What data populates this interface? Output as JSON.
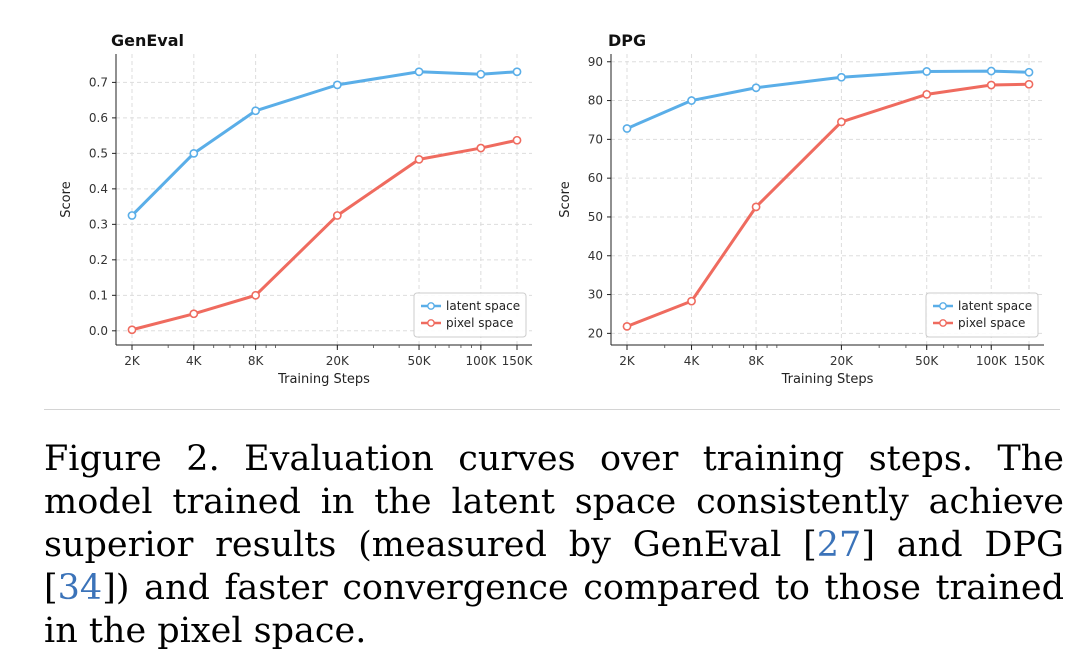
{
  "chart_data": [
    {
      "type": "line",
      "title": "GenEval",
      "xlabel": "Training Steps",
      "ylabel": "Score",
      "x_scale": "log",
      "categories": [
        "2K",
        "4K",
        "8K",
        "20K",
        "50K",
        "100K",
        "150K"
      ],
      "x": [
        2000,
        4000,
        8000,
        20000,
        50000,
        100000,
        150000
      ],
      "ylim": [
        -0.04,
        0.78
      ],
      "yticks": [
        "0.0",
        "0.1",
        "0.2",
        "0.3",
        "0.4",
        "0.5",
        "0.6",
        "0.7"
      ],
      "yticks_values": [
        0.0,
        0.1,
        0.2,
        0.3,
        0.4,
        0.5,
        0.6,
        0.7
      ],
      "grid": true,
      "legend_position": "bottom-right",
      "series": [
        {
          "name": "latent space",
          "color": "#5aaee8",
          "values": [
            0.325,
            0.5,
            0.62,
            0.693,
            0.73,
            0.723,
            0.73
          ]
        },
        {
          "name": "pixel space",
          "color": "#ef6b5f",
          "values": [
            0.003,
            0.048,
            0.1,
            0.325,
            0.483,
            0.515,
            0.537
          ]
        }
      ]
    },
    {
      "type": "line",
      "title": "DPG",
      "xlabel": "Training Steps",
      "ylabel": "Score",
      "x_scale": "log",
      "categories": [
        "2K",
        "4K",
        "8K",
        "20K",
        "50K",
        "100K",
        "150K"
      ],
      "x": [
        2000,
        4000,
        8000,
        20000,
        50000,
        100000,
        150000
      ],
      "ylim": [
        17,
        92
      ],
      "yticks": [
        "20",
        "30",
        "40",
        "50",
        "60",
        "70",
        "80",
        "90"
      ],
      "yticks_values": [
        20,
        30,
        40,
        50,
        60,
        70,
        80,
        90
      ],
      "grid": true,
      "legend_position": "bottom-right",
      "series": [
        {
          "name": "latent space",
          "color": "#5aaee8",
          "values": [
            72.8,
            80.0,
            83.3,
            86.0,
            87.5,
            87.6,
            87.3
          ]
        },
        {
          "name": "pixel space",
          "color": "#ef6b5f",
          "values": [
            21.8,
            28.3,
            52.6,
            74.5,
            81.6,
            84.0,
            84.2
          ]
        }
      ]
    }
  ],
  "caption": {
    "part1": "Figure 2. Evaluation curves over training steps. The model trained in the latent space consistently achieve superior results (measured by GenEval [",
    "ref1": "27",
    "part2": "] and DPG [",
    "ref2": "34",
    "part3": "]) and faster convergence compared to those trained in the pixel space."
  }
}
